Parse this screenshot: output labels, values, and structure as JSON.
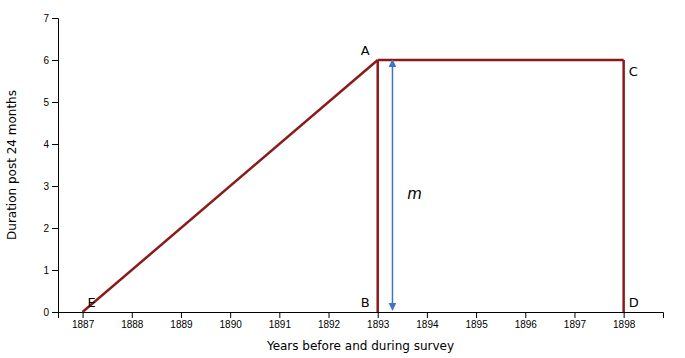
{
  "chart_data": {
    "type": "line",
    "xlabel": "Years before and during survey",
    "ylabel": "Duration post 24 months",
    "xlim": [
      1886.5,
      1898.8
    ],
    "ylim": [
      0,
      7
    ],
    "xticks": [
      1887,
      1888,
      1889,
      1890,
      1891,
      1892,
      1893,
      1894,
      1895,
      1896,
      1897,
      1898
    ],
    "yticks": [
      0,
      1,
      2,
      3,
      4,
      5,
      6,
      7
    ],
    "grid": false,
    "series": [
      {
        "x": [
          1887,
          1893
        ],
        "values": [
          0,
          6
        ],
        "color": "#8B1A1A"
      },
      {
        "x": [
          1893,
          1893
        ],
        "values": [
          6,
          0
        ],
        "color": "#8B1A1A"
      },
      {
        "x": [
          1893,
          1898
        ],
        "values": [
          6,
          6
        ],
        "color": "#8B1A1A"
      },
      {
        "x": [
          1898,
          1898
        ],
        "values": [
          6,
          0
        ],
        "color": "#8B1A1A"
      }
    ],
    "annotations": [
      {
        "text": "E",
        "x": 1887,
        "y": 0,
        "position": "upper right"
      },
      {
        "text": "A",
        "x": 1893,
        "y": 6,
        "position": "upper left"
      },
      {
        "text": "B",
        "x": 1893,
        "y": 0,
        "position": "upper left"
      },
      {
        "text": "C",
        "x": 1898,
        "y": 6,
        "position": "lower right"
      },
      {
        "text": "D",
        "x": 1898,
        "y": 0,
        "position": "upper right"
      },
      {
        "text": "m",
        "x": 1893.6,
        "y": 2.8,
        "position": "right"
      }
    ],
    "arrow": {
      "x": 1893.3,
      "y": [
        6.0,
        0.05
      ],
      "color": "#4472C4"
    }
  }
}
